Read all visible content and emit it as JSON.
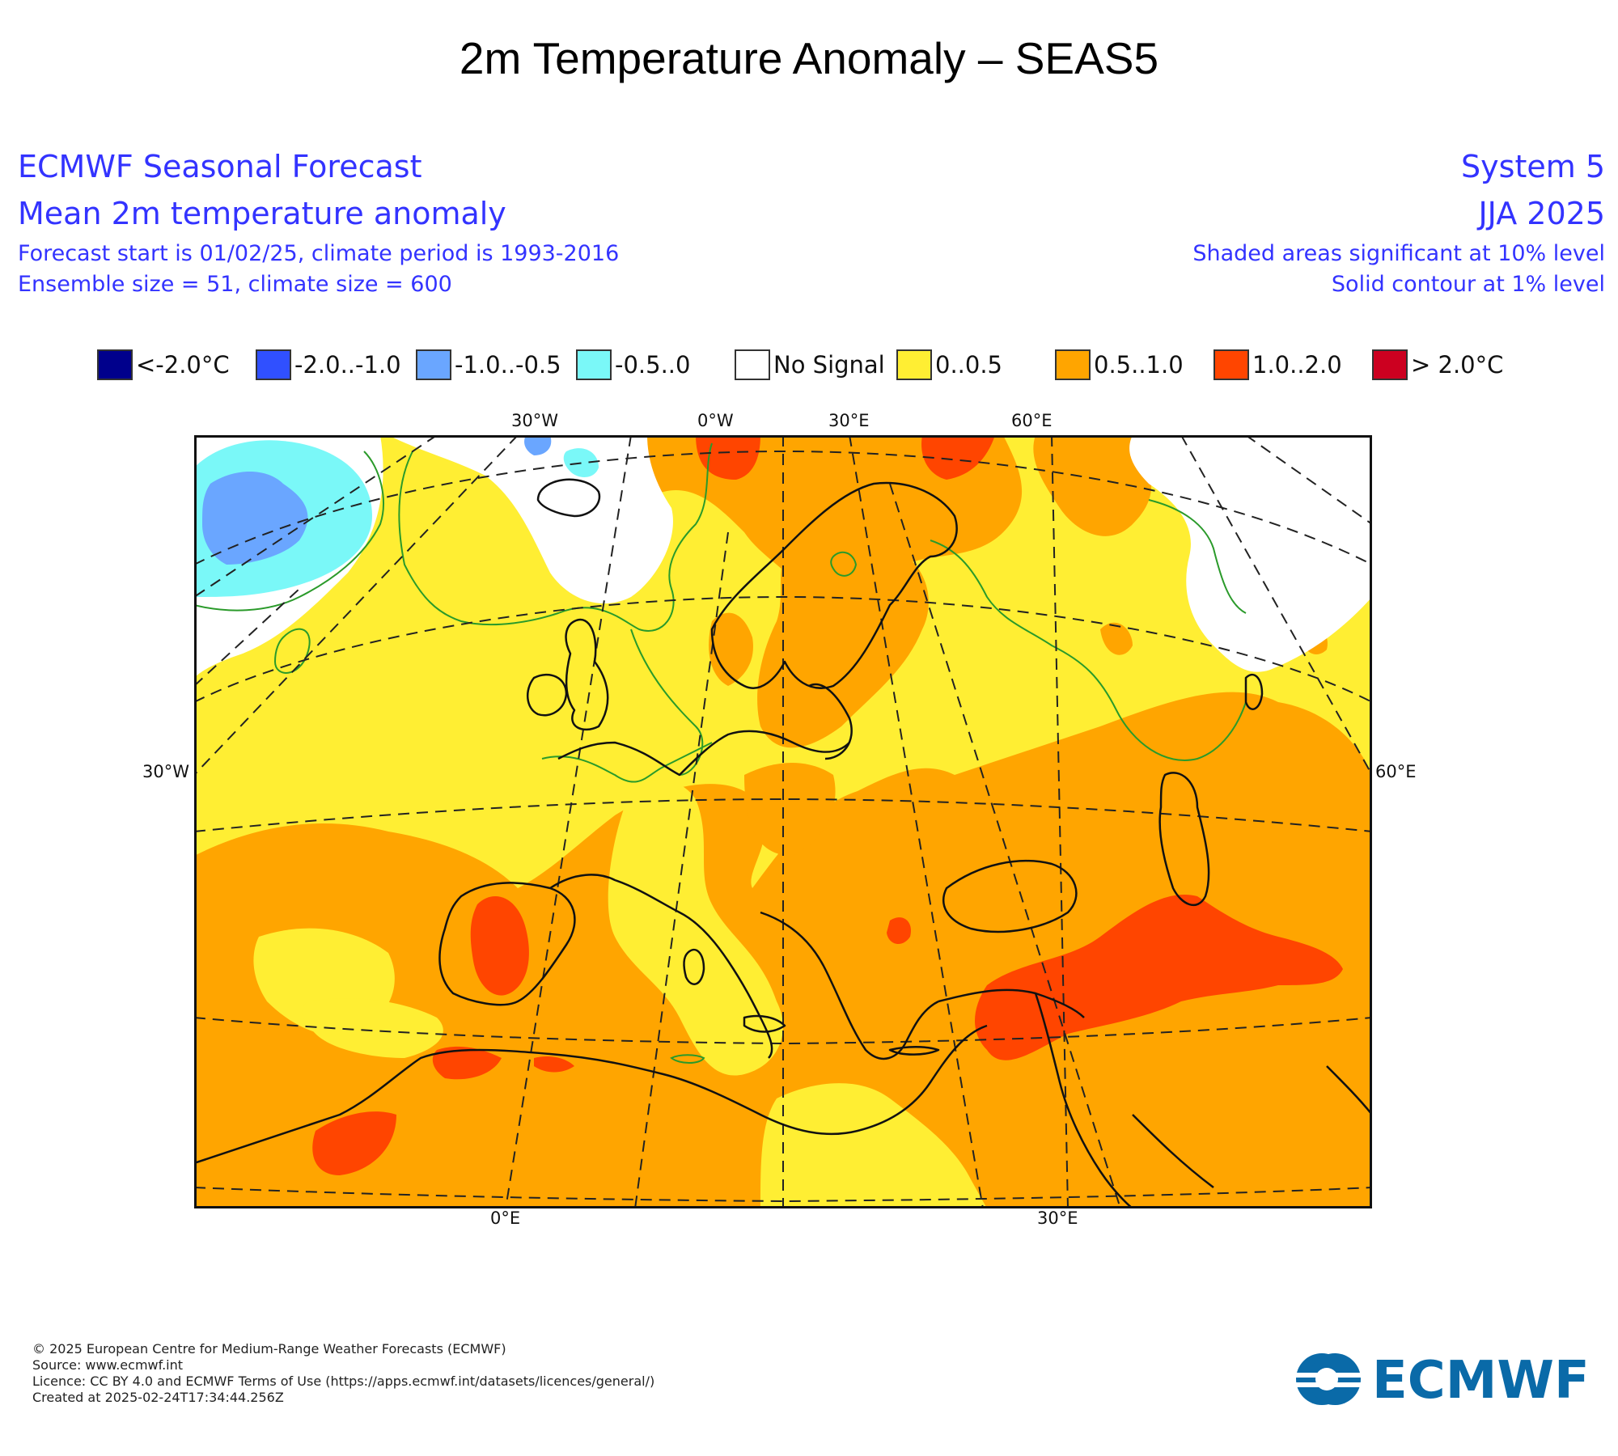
{
  "page_title": "2m Temperature Anomaly – SEAS5",
  "header": {
    "left": {
      "line1": "ECMWF Seasonal Forecast",
      "line2": "Mean 2m temperature anomaly",
      "line3": "Forecast start is 01/02/25, climate period is 1993-2016",
      "line4": "Ensemble size = 51, climate size = 600"
    },
    "right": {
      "line1": "System 5",
      "line2": "JJA 2025",
      "line3": "Shaded areas significant at 10% level",
      "line4": "Solid contour at 1% level"
    }
  },
  "legend": [
    {
      "label": "<-2.0°C",
      "color": "#00008c"
    },
    {
      "label": "-2.0..-1.0",
      "color": "#3050ff"
    },
    {
      "label": "-1.0..-0.5",
      "color": "#6aa6ff"
    },
    {
      "label": "-0.5..0",
      "color": "#7af8f8"
    },
    {
      "label": "No Signal",
      "color": "#ffffff"
    },
    {
      "label": "0..0.5",
      "color": "#ffee33"
    },
    {
      "label": "0.5..1.0",
      "color": "#ffa500"
    },
    {
      "label": "1.0..2.0",
      "color": "#ff4500"
    },
    {
      "label": "> 2.0°C",
      "color": "#cc0020"
    }
  ],
  "axis_labels": {
    "top": [
      "30°W",
      "0°W",
      "30°E",
      "60°E"
    ],
    "left": "30°W",
    "right": "60°E",
    "bottom": [
      "0°E",
      "30°E"
    ]
  },
  "footer": {
    "line1": "© 2025 European Centre for Medium-Range Weather Forecasts (ECMWF)",
    "line2": "Source: www.ecmwf.int",
    "line3": "Licence: CC BY 4.0 and ECMWF Terms of Use (https://apps.ecmwf.int/datasets/licences/general/)",
    "line4": "Created at 2025-02-24T17:34:44.256Z"
  },
  "logo": {
    "text": "ECMWF",
    "color": "#0a6aa8"
  }
}
